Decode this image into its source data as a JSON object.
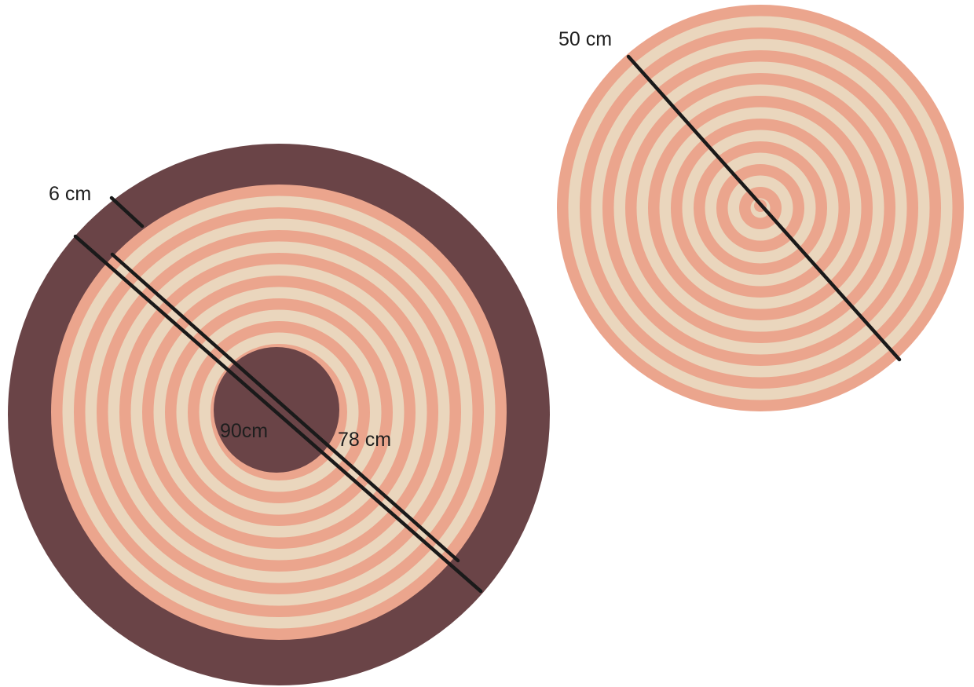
{
  "labels": {
    "band_width": "6 cm",
    "outer_diameter": "90cm",
    "inner_diameter": "78 cm",
    "small_diameter": "50 cm"
  },
  "colors": {
    "background": "#ffffff",
    "dark_border": "#6a4447",
    "stripe_salmon": "#eba58d",
    "stripe_cream": "#ead6bd",
    "measure_line": "#1a1a1a"
  }
}
